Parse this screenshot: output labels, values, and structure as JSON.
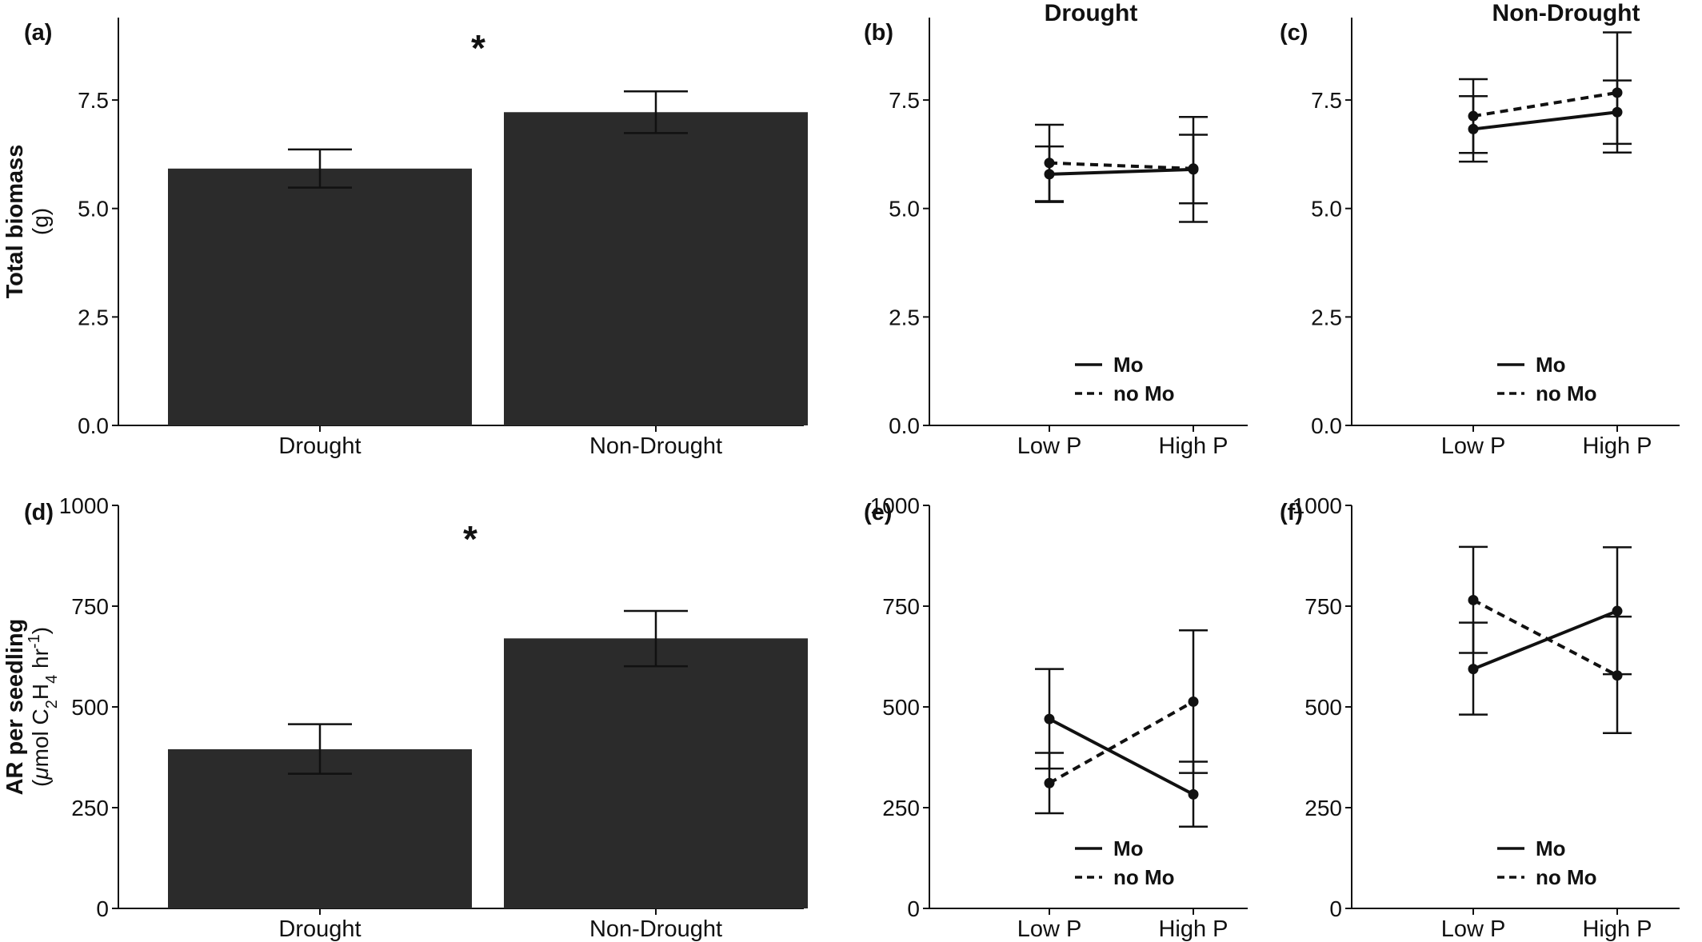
{
  "chart_data": [
    {
      "panel": "(a)",
      "type": "bar",
      "title": "",
      "ylabel_line1": "Total biomass",
      "ylabel_line2": "(g)",
      "ylim": [
        0,
        9.4
      ],
      "yticks": [
        "0.0",
        "2.5",
        "5.0",
        "7.5"
      ],
      "yticks_values": [
        0,
        2.5,
        5,
        7.5
      ],
      "categories": [
        "Drought",
        "Non-Drought"
      ],
      "values": [
        5.92,
        7.22
      ],
      "error_low": [
        5.48,
        6.74
      ],
      "error_high": [
        6.36,
        7.7
      ],
      "annotation": "*",
      "color": "#2b2b2b"
    },
    {
      "panel": "(b)",
      "type": "line",
      "title": "Drought",
      "ylim": [
        0,
        9.4
      ],
      "yticks": [
        "0.0",
        "2.5",
        "5.0",
        "7.5"
      ],
      "yticks_values": [
        0,
        2.5,
        5,
        7.5
      ],
      "categories": [
        "Low P",
        "High P"
      ],
      "series": [
        {
          "name": "Mo",
          "style": "solid",
          "values": [
            5.79,
            5.9
          ],
          "error_low": [
            5.15,
            5.12
          ],
          "error_high": [
            6.43,
            6.7
          ]
        },
        {
          "name": "no Mo",
          "style": "dashed",
          "values": [
            6.05,
            5.92
          ],
          "error_low": [
            5.17,
            4.69
          ],
          "error_high": [
            6.93,
            7.11
          ]
        }
      ],
      "legend": [
        "Mo",
        "no Mo"
      ]
    },
    {
      "panel": "(c)",
      "type": "line",
      "title": "Non-Drought",
      "ylim": [
        0,
        9.4
      ],
      "yticks": [
        "0.0",
        "2.5",
        "5.0",
        "7.5"
      ],
      "yticks_values": [
        0,
        2.5,
        5,
        7.5
      ],
      "categories": [
        "Low P",
        "High P"
      ],
      "series": [
        {
          "name": "Mo",
          "style": "solid",
          "values": [
            6.83,
            7.22
          ],
          "error_low": [
            6.08,
            6.49
          ],
          "error_high": [
            7.59,
            7.95
          ]
        },
        {
          "name": "no Mo",
          "style": "dashed",
          "values": [
            7.13,
            7.67
          ],
          "error_low": [
            6.28,
            6.29
          ],
          "error_high": [
            7.98,
            9.06
          ]
        }
      ],
      "legend": [
        "Mo",
        "no Mo"
      ]
    },
    {
      "panel": "(d)",
      "type": "bar",
      "title": "",
      "ylabel_line1": "AR per seedling",
      "ylabel_line2_parts": [
        "(",
        "μ",
        "mol C",
        "2",
        "H",
        "4",
        " hr",
        "-1",
        ")"
      ],
      "ylim": [
        0,
        1000
      ],
      "yticks": [
        "0",
        "250",
        "500",
        "750",
        "1000"
      ],
      "yticks_values": [
        0,
        250,
        500,
        750,
        1000
      ],
      "categories": [
        "Drought",
        "Non-Drought"
      ],
      "values": [
        395,
        670
      ],
      "error_low": [
        334,
        601
      ],
      "error_high": [
        457,
        738
      ],
      "annotation": "*",
      "color": "#2b2b2b"
    },
    {
      "panel": "(e)",
      "type": "line",
      "title": "",
      "ylim": [
        0,
        1000
      ],
      "yticks": [
        "0",
        "250",
        "500",
        "750",
        "1000"
      ],
      "yticks_values": [
        0,
        250,
        500,
        750,
        1000
      ],
      "categories": [
        "Low P",
        "High P"
      ],
      "series": [
        {
          "name": "Mo",
          "style": "solid",
          "values": [
            470,
            283
          ],
          "error_low": [
            347,
            203
          ],
          "error_high": [
            594,
            364
          ]
        },
        {
          "name": "no Mo",
          "style": "dashed",
          "values": [
            311,
            513
          ],
          "error_low": [
            236,
            336
          ],
          "error_high": [
            386,
            690
          ]
        }
      ],
      "legend": [
        "Mo",
        "no Mo"
      ]
    },
    {
      "panel": "(f)",
      "type": "line",
      "title": "",
      "ylim": [
        0,
        1000
      ],
      "yticks": [
        "0",
        "250",
        "500",
        "750",
        "1000"
      ],
      "yticks_values": [
        0,
        250,
        500,
        750,
        1000
      ],
      "categories": [
        "Low P",
        "High P"
      ],
      "series": [
        {
          "name": "Mo",
          "style": "solid",
          "values": [
            594,
            738
          ],
          "error_low": [
            481,
            581
          ],
          "error_high": [
            709,
            896
          ]
        },
        {
          "name": "no Mo",
          "style": "dashed",
          "values": [
            765,
            578
          ],
          "error_low": [
            634,
            435
          ],
          "error_high": [
            897,
            724
          ]
        }
      ],
      "legend": [
        "Mo",
        "no Mo"
      ]
    }
  ]
}
